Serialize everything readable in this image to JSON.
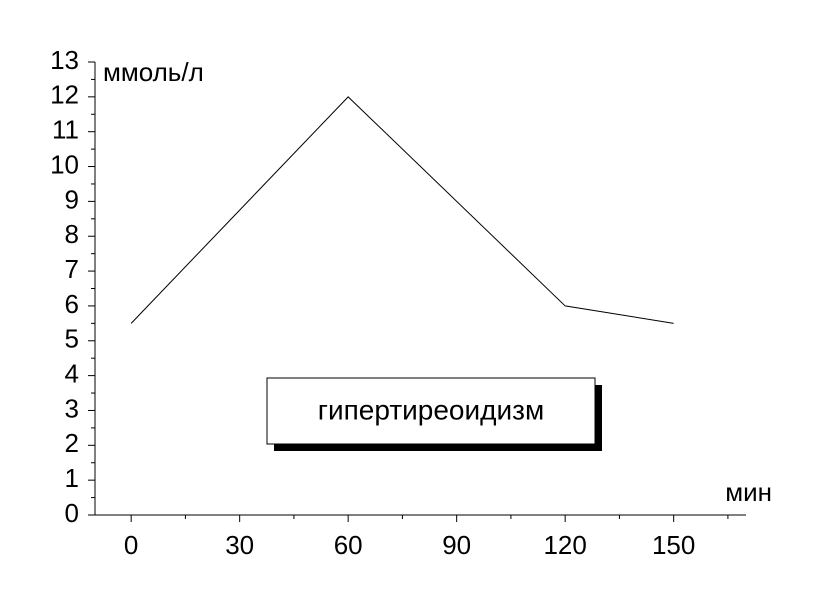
{
  "chart_data": {
    "type": "line",
    "y_label": "ммоль/л",
    "x_label": "мин",
    "annotation": "гипертиреоидизм",
    "x": [
      0,
      60,
      120,
      150
    ],
    "series": [
      {
        "color": "#000000",
        "values": [
          5.5,
          12,
          6,
          5.5
        ]
      }
    ],
    "xlim": [
      -10,
      170
    ],
    "xticks": [
      0,
      30,
      60,
      90,
      120,
      150
    ],
    "ylim": [
      0,
      13
    ],
    "yticks": [
      0,
      1,
      2,
      3,
      4,
      5,
      6,
      7,
      8,
      9,
      10,
      11,
      12,
      13
    ],
    "grid": false
  }
}
